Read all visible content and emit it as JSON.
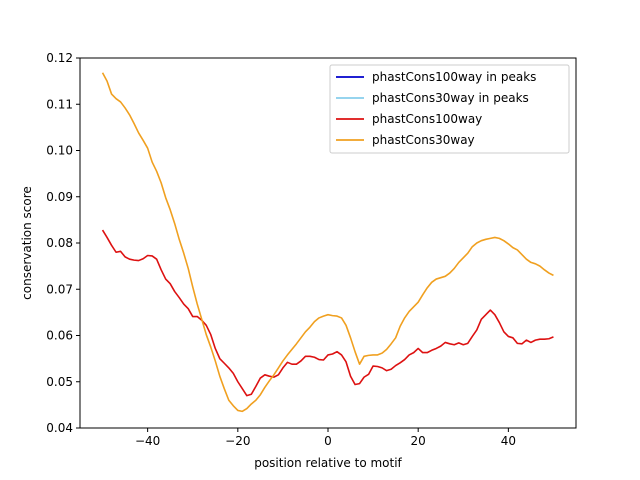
{
  "chart_data": {
    "type": "line",
    "xlabel": "position relative to motif",
    "ylabel": "conservation score",
    "xlim": [
      -55,
      55
    ],
    "ylim": [
      0.04,
      0.12
    ],
    "x_ticks": [
      -40,
      -20,
      0,
      20,
      40
    ],
    "y_ticks": [
      0.04,
      0.05,
      0.06,
      0.07,
      0.08,
      0.09,
      0.1,
      0.11,
      0.12
    ],
    "x_tick_labels": [
      "−40",
      "−20",
      "0",
      "20",
      "40"
    ],
    "y_tick_labels": [
      "0.04",
      "0.05",
      "0.06",
      "0.07",
      "0.08",
      "0.09",
      "0.10",
      "0.11",
      "0.12"
    ],
    "legend_position": "top-right",
    "legend": [
      {
        "name": "phastCons100way in peaks",
        "color": "#0000cc"
      },
      {
        "name": "phastCons30way in peaks",
        "color": "#87ceeb"
      },
      {
        "name": "phastCons100way",
        "color": "#dd1111"
      },
      {
        "name": "phastCons30way",
        "color": "#f0a020"
      }
    ],
    "series": [
      {
        "name": "phastCons100way",
        "color": "#dd1111",
        "x": [
          -50,
          -49,
          -48,
          -47,
          -46,
          -45,
          -44,
          -43,
          -42,
          -41,
          -40,
          -39,
          -38,
          -37,
          -36,
          -35,
          -34,
          -33,
          -32,
          -31,
          -30,
          -29,
          -28,
          -27,
          -26,
          -25,
          -24,
          -23,
          -22,
          -21,
          -20,
          -19,
          -18,
          -17,
          -16,
          -15,
          -14,
          -13,
          -12,
          -11,
          -10,
          -9,
          -8,
          -7,
          -6,
          -5,
          -4,
          -3,
          -2,
          -1,
          0,
          1,
          2,
          3,
          4,
          5,
          6,
          7,
          8,
          9,
          10,
          11,
          12,
          13,
          14,
          15,
          16,
          17,
          18,
          19,
          20,
          21,
          22,
          23,
          24,
          25,
          26,
          27,
          28,
          29,
          30,
          31,
          32,
          33,
          34,
          35,
          36,
          37,
          38,
          39,
          40,
          41,
          42,
          43,
          44,
          45,
          46,
          47,
          48,
          49,
          50
        ],
        "y": [
          0.0828,
          0.0812,
          0.0795,
          0.078,
          0.0782,
          0.077,
          0.0765,
          0.0763,
          0.0762,
          0.0766,
          0.0773,
          0.0772,
          0.0765,
          0.0742,
          0.0722,
          0.0712,
          0.0695,
          0.0682,
          0.0668,
          0.0658,
          0.0641,
          0.0641,
          0.0633,
          0.0622,
          0.0602,
          0.0572,
          0.055,
          0.054,
          0.053,
          0.0518,
          0.05,
          0.0485,
          0.047,
          0.0473,
          0.049,
          0.0508,
          0.0515,
          0.0512,
          0.051,
          0.0515,
          0.053,
          0.0542,
          0.0538,
          0.0538,
          0.0545,
          0.0555,
          0.0555,
          0.0553,
          0.0548,
          0.0547,
          0.0558,
          0.056,
          0.0565,
          0.0558,
          0.0543,
          0.0512,
          0.0494,
          0.0496,
          0.051,
          0.0516,
          0.0534,
          0.0533,
          0.053,
          0.0524,
          0.0527,
          0.0535,
          0.0541,
          0.0548,
          0.0558,
          0.0563,
          0.0572,
          0.0563,
          0.0563,
          0.0568,
          0.0572,
          0.0577,
          0.0585,
          0.0582,
          0.058,
          0.0584,
          0.058,
          0.0583,
          0.0598,
          0.0612,
          0.0635,
          0.0645,
          0.0655,
          0.0645,
          0.0628,
          0.0608,
          0.0598,
          0.0595,
          0.0583,
          0.0582,
          0.059,
          0.0585,
          0.059,
          0.0592,
          0.0592,
          0.0593,
          0.0597
        ]
      },
      {
        "name": "phastCons30way",
        "color": "#f0a020",
        "x": [
          -50,
          -49,
          -48,
          -47,
          -46,
          -45,
          -44,
          -43,
          -42,
          -41,
          -40,
          -39,
          -38,
          -37,
          -36,
          -35,
          -34,
          -33,
          -32,
          -31,
          -30,
          -29,
          -28,
          -27,
          -26,
          -25,
          -24,
          -23,
          -22,
          -21,
          -20,
          -19,
          -18,
          -17,
          -16,
          -15,
          -14,
          -13,
          -12,
          -11,
          -10,
          -9,
          -8,
          -7,
          -6,
          -5,
          -4,
          -3,
          -2,
          -1,
          0,
          1,
          2,
          3,
          4,
          5,
          6,
          7,
          8,
          9,
          10,
          11,
          12,
          13,
          14,
          15,
          16,
          17,
          18,
          19,
          20,
          21,
          22,
          23,
          24,
          25,
          26,
          27,
          28,
          29,
          30,
          31,
          32,
          33,
          34,
          35,
          36,
          37,
          38,
          39,
          40,
          41,
          42,
          43,
          44,
          45,
          46,
          47,
          48,
          49,
          50
        ],
        "y": [
          0.1168,
          0.115,
          0.1122,
          0.1112,
          0.1105,
          0.1092,
          0.1077,
          0.1058,
          0.1038,
          0.1022,
          0.1005,
          0.0975,
          0.0955,
          0.093,
          0.0898,
          0.0872,
          0.0842,
          0.0808,
          0.0778,
          0.0745,
          0.0705,
          0.0668,
          0.0635,
          0.0602,
          0.0575,
          0.0545,
          0.0512,
          0.0485,
          0.046,
          0.0448,
          0.0438,
          0.0436,
          0.0442,
          0.0452,
          0.046,
          0.0472,
          0.0488,
          0.0502,
          0.0515,
          0.053,
          0.0545,
          0.0558,
          0.057,
          0.0582,
          0.0595,
          0.0608,
          0.0618,
          0.063,
          0.0638,
          0.0642,
          0.0645,
          0.0643,
          0.0642,
          0.0638,
          0.0622,
          0.0595,
          0.0565,
          0.0538,
          0.0555,
          0.0557,
          0.0558,
          0.0558,
          0.0562,
          0.057,
          0.0582,
          0.0595,
          0.062,
          0.0638,
          0.0652,
          0.0662,
          0.0672,
          0.0688,
          0.0703,
          0.0715,
          0.0722,
          0.0725,
          0.0728,
          0.0735,
          0.0745,
          0.0758,
          0.0768,
          0.0778,
          0.0792,
          0.08,
          0.0805,
          0.0808,
          0.081,
          0.0812,
          0.081,
          0.0805,
          0.0798,
          0.079,
          0.0785,
          0.0775,
          0.0765,
          0.0758,
          0.0755,
          0.075,
          0.0742,
          0.0735,
          0.073
        ]
      }
    ]
  }
}
